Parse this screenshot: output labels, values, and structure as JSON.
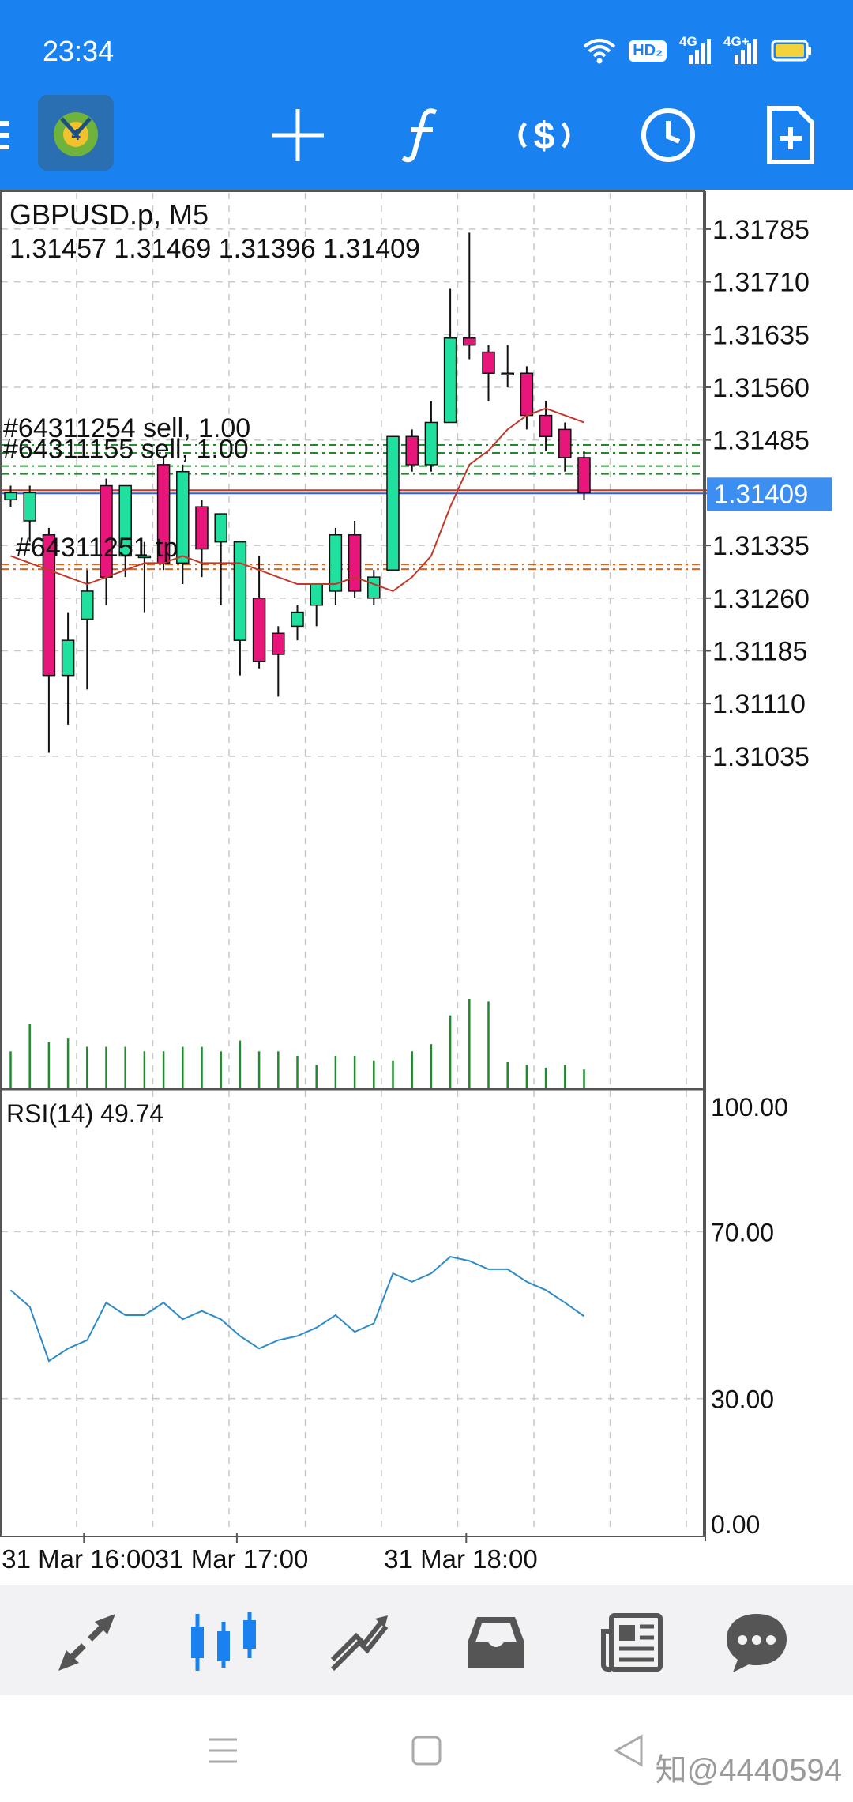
{
  "status_bar": {
    "time": "23:34",
    "icons": [
      "wifi-icon",
      "hd-icon",
      "signal-4g-icon",
      "signal-4g-icon",
      "battery-icon"
    ],
    "hd_label": "HD₂",
    "net_label_1": "4G",
    "net_label_2": "4G+"
  },
  "toolbar": {
    "menu_icon": "menu-icon",
    "app_icon": "metatrader-icon",
    "buttons": [
      "crosshair-icon",
      "indicator-f-icon",
      "trade-icon",
      "timeframe-clock-icon",
      "new-order-icon"
    ]
  },
  "chart": {
    "symbol_label": "GBPUSD.p, M5",
    "ohlc_label": "1.31457 1.31469 1.31396 1.31409",
    "current_price_label": "1.31409",
    "orders": [
      {
        "label": "#64311254 sell, 1.00",
        "price": 1.31478
      },
      {
        "label": "#64311155 sell, 1.00",
        "price": 1.31448
      }
    ],
    "tp_label": "#64311251 tp",
    "tp_price": 1.31308,
    "rsi_label": "RSI(14) 49.74",
    "colors": {
      "bull": "#20e0a0",
      "bear": "#e8167a",
      "ma": "#c0392b",
      "rsi": "#2e8bc7",
      "price_tag": "#3c8ff0"
    }
  },
  "chart_data": {
    "type": "candlestick",
    "symbol": "GBPUSD.p",
    "timeframe": "M5",
    "ylim": [
      1.3096,
      1.3184
    ],
    "y_ticks": [
      "1.31785",
      "1.31710",
      "1.31635",
      "1.31560",
      "1.31485",
      "1.31409",
      "1.31335",
      "1.31260",
      "1.31185",
      "1.31110",
      "1.31035"
    ],
    "x_ticks": [
      "31 Mar 16:00",
      "31 Mar 17:00",
      "31 Mar 18:00"
    ],
    "x_tick_bars": [
      4,
      12,
      24
    ],
    "candles": [
      {
        "o": 1.314,
        "h": 1.3142,
        "l": 1.3139,
        "c": 1.3141
      },
      {
        "o": 1.3137,
        "h": 1.3142,
        "l": 1.3134,
        "c": 1.3141
      },
      {
        "o": 1.3135,
        "h": 1.3136,
        "l": 1.3104,
        "c": 1.3115
      },
      {
        "o": 1.3115,
        "h": 1.3124,
        "l": 1.3108,
        "c": 1.312
      },
      {
        "o": 1.3123,
        "h": 1.313,
        "l": 1.3113,
        "c": 1.3127
      },
      {
        "o": 1.3142,
        "h": 1.3143,
        "l": 1.3125,
        "c": 1.3129
      },
      {
        "o": 1.3132,
        "h": 1.3142,
        "l": 1.3129,
        "c": 1.3142
      },
      {
        "o": 1.3132,
        "h": 1.3134,
        "l": 1.3124,
        "c": 1.3132
      },
      {
        "o": 1.3145,
        "h": 1.3146,
        "l": 1.313,
        "c": 1.3131
      },
      {
        "o": 1.3131,
        "h": 1.3145,
        "l": 1.3128,
        "c": 1.3144
      },
      {
        "o": 1.3139,
        "h": 1.314,
        "l": 1.3129,
        "c": 1.3133
      },
      {
        "o": 1.3134,
        "h": 1.3138,
        "l": 1.3125,
        "c": 1.3138
      },
      {
        "o": 1.312,
        "h": 1.3134,
        "l": 1.3115,
        "c": 1.3134
      },
      {
        "o": 1.3126,
        "h": 1.3132,
        "l": 1.3116,
        "c": 1.3117
      },
      {
        "o": 1.3121,
        "h": 1.3122,
        "l": 1.3112,
        "c": 1.3118
      },
      {
        "o": 1.3122,
        "h": 1.3125,
        "l": 1.312,
        "c": 1.3124
      },
      {
        "o": 1.3125,
        "h": 1.3128,
        "l": 1.3122,
        "c": 1.3128
      },
      {
        "o": 1.3127,
        "h": 1.3136,
        "l": 1.3125,
        "c": 1.3135
      },
      {
        "o": 1.3135,
        "h": 1.3137,
        "l": 1.3126,
        "c": 1.3127
      },
      {
        "o": 1.3126,
        "h": 1.313,
        "l": 1.3125,
        "c": 1.3129
      },
      {
        "o": 1.313,
        "h": 1.3149,
        "l": 1.313,
        "c": 1.3149
      },
      {
        "o": 1.3149,
        "h": 1.315,
        "l": 1.3144,
        "c": 1.3145
      },
      {
        "o": 1.3145,
        "h": 1.3154,
        "l": 1.3144,
        "c": 1.3151
      },
      {
        "o": 1.3151,
        "h": 1.317,
        "l": 1.3151,
        "c": 1.3163
      },
      {
        "o": 1.3163,
        "h": 1.3178,
        "l": 1.316,
        "c": 1.3162
      },
      {
        "o": 1.3161,
        "h": 1.3162,
        "l": 1.3154,
        "c": 1.3158
      },
      {
        "o": 1.3158,
        "h": 1.3162,
        "l": 1.3156,
        "c": 1.3158
      },
      {
        "o": 1.3158,
        "h": 1.3159,
        "l": 1.315,
        "c": 1.3152
      },
      {
        "o": 1.3152,
        "h": 1.3154,
        "l": 1.3147,
        "c": 1.3149
      },
      {
        "o": 1.315,
        "h": 1.3151,
        "l": 1.3144,
        "c": 1.3146
      },
      {
        "o": 1.3146,
        "h": 1.3147,
        "l": 1.314,
        "c": 1.3141
      }
    ],
    "moving_average": [
      1.3132,
      1.3131,
      1.313,
      1.3129,
      1.3128,
      1.3129,
      1.313,
      1.3131,
      1.3131,
      1.3132,
      1.3131,
      1.3131,
      1.3131,
      1.313,
      1.3129,
      1.3128,
      1.3128,
      1.3128,
      1.3129,
      1.3128,
      1.3127,
      1.3129,
      1.3132,
      1.3139,
      1.3145,
      1.3147,
      1.315,
      1.3152,
      1.3153,
      1.3152,
      1.3151
    ],
    "volume": [
      40,
      70,
      50,
      55,
      45,
      45,
      45,
      40,
      40,
      45,
      45,
      40,
      52,
      40,
      40,
      35,
      25,
      35,
      35,
      30,
      30,
      40,
      48,
      80,
      98,
      95,
      28,
      25,
      22,
      25,
      20
    ],
    "rsi": {
      "name": "RSI(14)",
      "ylim": [
        0,
        100
      ],
      "y_ticks": [
        "100.00",
        "70.00",
        "30.00",
        "0.00"
      ],
      "values": [
        56,
        52,
        39,
        42,
        44,
        53,
        50,
        50,
        53,
        49,
        51,
        49,
        45,
        42,
        44,
        45,
        47,
        50,
        46,
        48,
        60,
        58,
        60,
        64,
        63,
        61,
        61,
        58,
        56,
        53,
        49.74
      ]
    }
  },
  "bottom_nav": {
    "items": [
      "quotes-icon",
      "chart-icon",
      "trade-icon",
      "history-icon",
      "news-icon",
      "chat-icon"
    ],
    "active_index": 1
  },
  "system_nav": {
    "watermark": "知@4440594"
  }
}
